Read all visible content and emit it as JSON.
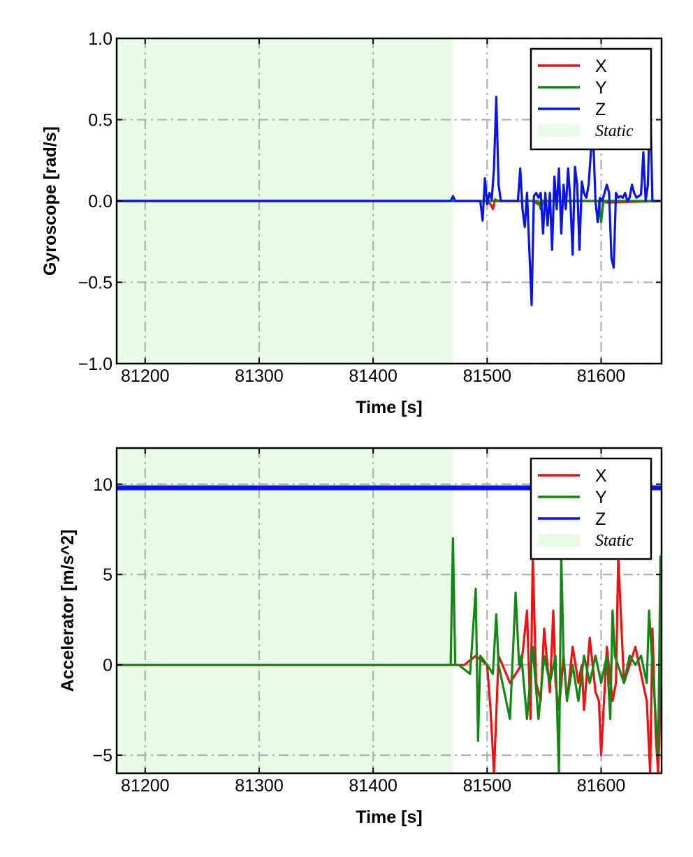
{
  "chart_data": [
    {
      "type": "line",
      "xlabel": "Time [s]",
      "ylabel": "Gyroscope [rad/s]",
      "xlim": [
        81175,
        81653
      ],
      "ylim": [
        -1.0,
        1.0
      ],
      "x_ticks": [
        81200,
        81300,
        81400,
        81500,
        81600
      ],
      "y_ticks": [
        -1.0,
        -0.5,
        0.0,
        0.5,
        1.0
      ],
      "y_tick_labels": [
        "−1.0",
        "−0.5",
        "0.0",
        "0.5",
        "1.0"
      ],
      "grid": true,
      "legend_position": "top-right",
      "static_region": {
        "label": "Static",
        "x_start": 81175,
        "x_end": 81470,
        "color": "#e8fbe6"
      },
      "series": [
        {
          "name": "X",
          "color": "#ee1111",
          "x": [
            81175,
            81470,
            81500,
            81503,
            81505,
            81507,
            81510,
            81540,
            81545,
            81548,
            81600,
            81605,
            81653
          ],
          "y": [
            0,
            0,
            0,
            -0.02,
            -0.05,
            0.01,
            0,
            0,
            -0.02,
            0,
            0,
            -0.01,
            0
          ]
        },
        {
          "name": "Y",
          "color": "#118811",
          "x": [
            81175,
            81470,
            81545,
            81547,
            81549,
            81590,
            81598,
            81600,
            81602,
            81653
          ],
          "y": [
            0,
            0,
            0,
            -0.05,
            0,
            0,
            0,
            -0.13,
            0,
            0
          ]
        },
        {
          "name": "Z",
          "color": "#0a14e6",
          "x": [
            81175,
            81468,
            81470,
            81472,
            81494,
            81496,
            81498,
            81500,
            81502,
            81504,
            81506,
            81508,
            81510,
            81512,
            81527,
            81529,
            81531,
            81533,
            81535,
            81537,
            81539,
            81541,
            81543,
            81545,
            81547,
            81549,
            81551,
            81553,
            81555,
            81557,
            81559,
            81561,
            81563,
            81565,
            81567,
            81569,
            81571,
            81573,
            81575,
            81577,
            81579,
            81581,
            81583,
            81585,
            81587,
            81589,
            81591,
            81593,
            81595,
            81597,
            81599,
            81601,
            81603,
            81605,
            81607,
            81609,
            81611,
            81613,
            81615,
            81617,
            81619,
            81621,
            81623,
            81625,
            81627,
            81629,
            81631,
            81633,
            81635,
            81637,
            81639,
            81641,
            81643,
            81645,
            81647,
            81649,
            81651,
            81653
          ],
          "y": [
            0,
            0,
            0.03,
            0,
            0,
            -0.12,
            0.14,
            -0.02,
            0.05,
            0.01,
            0.2,
            0.64,
            0.1,
            0,
            0,
            0.2,
            -0.05,
            -0.16,
            0.05,
            -0.3,
            -0.64,
            0.03,
            0.05,
            0.02,
            0.05,
            -0.2,
            0.05,
            -0.15,
            0.05,
            -0.3,
            0.15,
            -0.05,
            0.2,
            -0.2,
            0.1,
            -0.05,
            0.2,
            0,
            -0.33,
            0.21,
            0.1,
            -0.3,
            0.12,
            0.05,
            0.02,
            0.1,
            0.3,
            0.4,
            0,
            -0.13,
            0.02,
            0,
            0.05,
            0.1,
            0.05,
            -0.35,
            -0.41,
            0.05,
            0.02,
            0.03,
            0.02,
            0.05,
            0,
            0.02,
            0.1,
            0.05,
            0.02,
            0.03,
            0.04,
            0.3,
            0,
            0.1,
            0.63,
            0,
            0,
            0,
            0,
            0
          ]
        }
      ]
    },
    {
      "type": "line",
      "xlabel": "Time [s]",
      "ylabel": "Accelerator [m/s^2]",
      "xlim": [
        81175,
        81653
      ],
      "ylim": [
        -6,
        12
      ],
      "x_ticks": [
        81200,
        81300,
        81400,
        81500,
        81600
      ],
      "y_ticks": [
        -5,
        0,
        5,
        10
      ],
      "y_tick_labels": [
        "−5",
        "0",
        "5",
        "10"
      ],
      "grid": true,
      "legend_position": "top-right",
      "static_region": {
        "label": "Static",
        "x_start": 81175,
        "x_end": 81470,
        "color": "#e8fbe6"
      },
      "series": [
        {
          "name": "X",
          "color": "#ee1111",
          "x": [
            81175,
            81470,
            81480,
            81490,
            81500,
            81503,
            81506,
            81510,
            81520,
            81530,
            81535,
            81538,
            81540,
            81543,
            81547,
            81550,
            81555,
            81558,
            81560,
            81563,
            81567,
            81570,
            81575,
            81580,
            81583,
            81585,
            81590,
            81595,
            81598,
            81600,
            81605,
            81610,
            81613,
            81615,
            81620,
            81625,
            81630,
            81635,
            81640,
            81643,
            81645,
            81648,
            81650,
            81653
          ],
          "y": [
            0,
            0,
            0,
            0.5,
            0,
            -2.5,
            -6,
            0.5,
            -1,
            0,
            3,
            -3,
            6,
            -1,
            -2,
            2,
            -1.5,
            3,
            -1,
            -2.5,
            0.5,
            -2,
            1,
            -1,
            0,
            -2.5,
            1.5,
            -1.5,
            -2,
            -5,
            1,
            -2,
            -1,
            6,
            -1,
            0,
            1,
            -0.5,
            -2,
            -6,
            2,
            -4,
            -6,
            0
          ]
        },
        {
          "name": "Y",
          "color": "#118811",
          "x": [
            81175,
            81468,
            81470,
            81472,
            81475,
            81485,
            81490,
            81492,
            81494,
            81500,
            81505,
            81508,
            81510,
            81520,
            81525,
            81528,
            81530,
            81535,
            81540,
            81545,
            81550,
            81555,
            81560,
            81563,
            81565,
            81567,
            81570,
            81575,
            81580,
            81585,
            81590,
            81595,
            81600,
            81605,
            81608,
            81610,
            81612,
            81620,
            81625,
            81630,
            81635,
            81640,
            81642,
            81645,
            81650,
            81652,
            81653
          ],
          "y": [
            0,
            0,
            7,
            0,
            0,
            -0.5,
            4.2,
            -4.2,
            0.5,
            0,
            -0.5,
            2.8,
            0,
            -3,
            4,
            0,
            0.5,
            -3,
            1,
            -3,
            0.5,
            -1,
            0.5,
            -6,
            6,
            0.5,
            -2,
            0,
            -2,
            0.5,
            -1,
            0.5,
            -1,
            0.5,
            -3,
            3,
            0.5,
            -1,
            0.5,
            0,
            0.5,
            -1,
            3,
            0,
            -5,
            6,
            0
          ]
        },
        {
          "name": "Z",
          "color": "#0a14e6",
          "x": [
            81175,
            81470,
            81500,
            81550,
            81600,
            81653
          ],
          "y": [
            9.8,
            9.8,
            9.8,
            9.8,
            9.8,
            9.8
          ]
        }
      ]
    }
  ]
}
